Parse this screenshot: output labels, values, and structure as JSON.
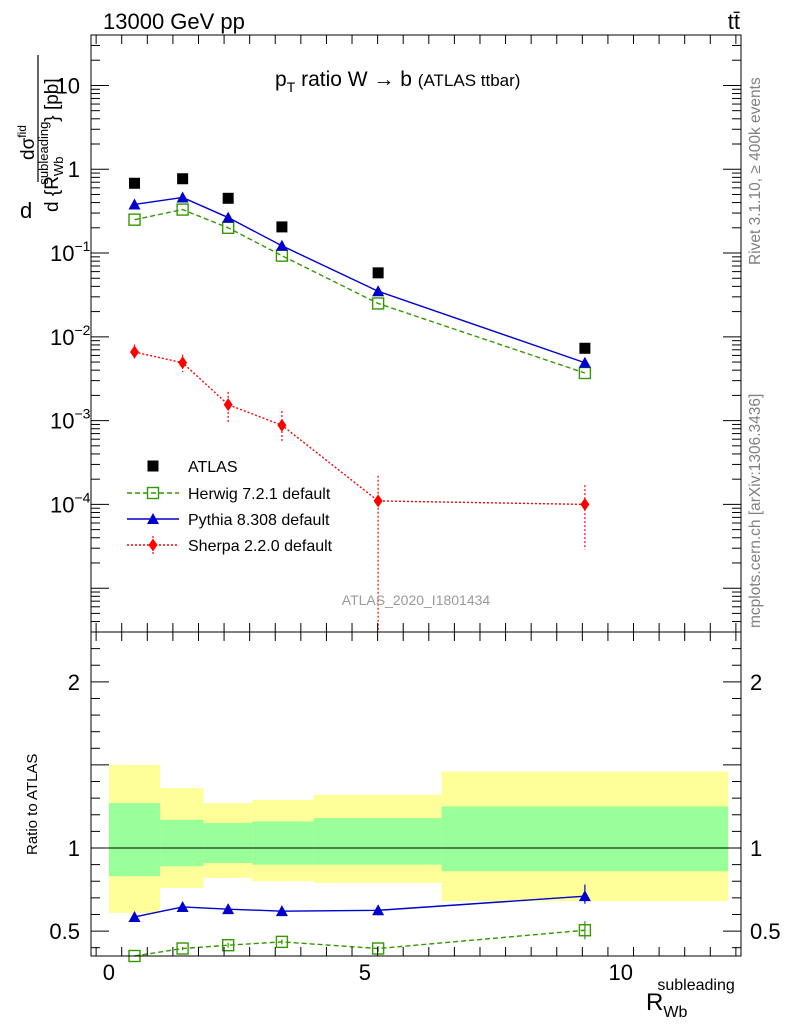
{
  "header": {
    "energy_label": "13000 GeV pp",
    "process_label": "tt̄",
    "title_prefix": "p",
    "title_sub": "T",
    "title_main": " ratio W → b",
    "title_suffix": "(ATLAS ttbar)",
    "side_label_top": "Rivet 3.1.10, ≥ 400k events",
    "side_label_bottom": "mcplots.cern.ch [arXiv:1306.3436]",
    "watermark": "ATLAS_2020_I1801434"
  },
  "chart_data": {
    "type": "line",
    "upper_panel": {
      "ylabel_d": "d",
      "ylabel_num": "dσ",
      "ylabel_num_sup": "fid",
      "ylabel_den": "d {R",
      "ylabel_den_sub": "Wb",
      "ylabel_den_sup": "subleading",
      "ylabel_den_close": "}",
      "ylabel_unit": " [pb]",
      "yscale": "log",
      "ylim": [
        3e-06,
        40
      ],
      "ytick_labels": [
        {
          "base": "10",
          "exp": "",
          "value": 10
        },
        {
          "base": "1",
          "exp": "",
          "value": 1
        },
        {
          "base": "10",
          "exp": "−1",
          "value": 0.1
        },
        {
          "base": "10",
          "exp": "−2",
          "value": 0.01
        },
        {
          "base": "10",
          "exp": "−3",
          "value": 0.001
        },
        {
          "base": "10",
          "exp": "−4",
          "value": 0.0001
        }
      ],
      "series": [
        {
          "name": "ATLAS",
          "color": "#000000",
          "marker": "square-filled",
          "line": "none",
          "x": [
            0.5,
            1.44,
            2.33,
            3.38,
            5.26,
            9.3
          ],
          "y": [
            0.68,
            0.77,
            0.45,
            0.205,
            0.058,
            0.0073
          ]
        },
        {
          "name": "Herwig 7.2.1 default",
          "color": "#339900",
          "marker": "square-open",
          "line": "dashed",
          "x": [
            0.5,
            1.44,
            2.33,
            3.38,
            5.26,
            9.3
          ],
          "y": [
            0.25,
            0.33,
            0.2,
            0.093,
            0.025,
            0.0037
          ]
        },
        {
          "name": "Pythia 8.308 default",
          "color": "#0000cc",
          "marker": "triangle",
          "line": "solid",
          "x": [
            0.5,
            1.44,
            2.33,
            3.38,
            5.26,
            9.3
          ],
          "y": [
            0.38,
            0.46,
            0.265,
            0.122,
            0.035,
            0.0049
          ]
        },
        {
          "name": "Sherpa 2.2.0 default",
          "color": "#ff0000",
          "marker": "diamond",
          "line": "dotted",
          "x": [
            0.5,
            1.44,
            2.33,
            3.38,
            5.26,
            9.3
          ],
          "y": [
            0.0066,
            0.0049,
            0.00155,
            0.00088,
            0.00011,
            0.0001
          ],
          "err_lo": [
            0.0053,
            0.0038,
            0.00095,
            0.00055,
            2.5e-06,
            2.9e-05
          ],
          "err_hi": [
            0.0081,
            0.0061,
            0.0022,
            0.0013,
            0.00022,
            0.00017
          ]
        }
      ]
    },
    "lower_panel": {
      "ylabel": "Ratio to ATLAS",
      "ylim": [
        0.35,
        2.3
      ],
      "ytick_labels": [
        "2",
        "1",
        "0.5"
      ],
      "ytick_values": [
        2,
        1,
        0.5
      ],
      "reference": 1,
      "bands": {
        "bins": [
          [
            0,
            1
          ],
          [
            1,
            1.85
          ],
          [
            1.85,
            2.8
          ],
          [
            2.8,
            4.0
          ],
          [
            4.0,
            6.5
          ],
          [
            6.5,
            12.1
          ]
        ],
        "green": [
          [
            0.83,
            1.27
          ],
          [
            0.89,
            1.17
          ],
          [
            0.91,
            1.15
          ],
          [
            0.9,
            1.16
          ],
          [
            0.9,
            1.18
          ],
          [
            0.86,
            1.25
          ]
        ],
        "yellow": [
          [
            0.61,
            1.5
          ],
          [
            0.76,
            1.36
          ],
          [
            0.82,
            1.27
          ],
          [
            0.8,
            1.29
          ],
          [
            0.79,
            1.32
          ],
          [
            0.68,
            1.46
          ]
        ]
      },
      "series": [
        {
          "name": "Pythia 8.308 default",
          "color": "#0000cc",
          "marker": "triangle",
          "line": "solid",
          "x": [
            0.5,
            1.44,
            2.33,
            3.38,
            5.26,
            9.3
          ],
          "y": [
            0.585,
            0.645,
            0.632,
            0.62,
            0.625,
            0.71
          ],
          "err_lo": [
            0.575,
            0.632,
            0.617,
            0.6,
            0.595,
            0.665
          ],
          "err_hi": [
            0.597,
            0.66,
            0.648,
            0.64,
            0.655,
            0.78
          ]
        },
        {
          "name": "Herwig 7.2.1 default",
          "color": "#339900",
          "marker": "square-open",
          "line": "dashed",
          "x": [
            0.5,
            1.44,
            2.33,
            3.38,
            5.26,
            9.3
          ],
          "y": [
            0.35,
            0.395,
            0.415,
            0.435,
            0.395,
            0.505
          ],
          "err_lo": [
            0.35,
            0.385,
            0.4,
            0.42,
            0.375,
            0.45
          ],
          "err_hi": [
            0.35,
            0.405,
            0.43,
            0.45,
            0.41,
            0.56
          ]
        }
      ]
    },
    "x_axis": {
      "xlabel": "R",
      "xlabel_sub": "Wb",
      "xlabel_sup": "subleading",
      "xlim": [
        -0.35,
        12.35
      ],
      "xtick_labels": [
        "0",
        "5",
        "10"
      ],
      "xtick_values": [
        0,
        5,
        10
      ]
    },
    "legend": {
      "placement": "lower-left",
      "entries": [
        "ATLAS",
        "Herwig 7.2.1 default",
        "Pythia 8.308 default",
        "Sherpa 2.2.0 default"
      ]
    }
  }
}
